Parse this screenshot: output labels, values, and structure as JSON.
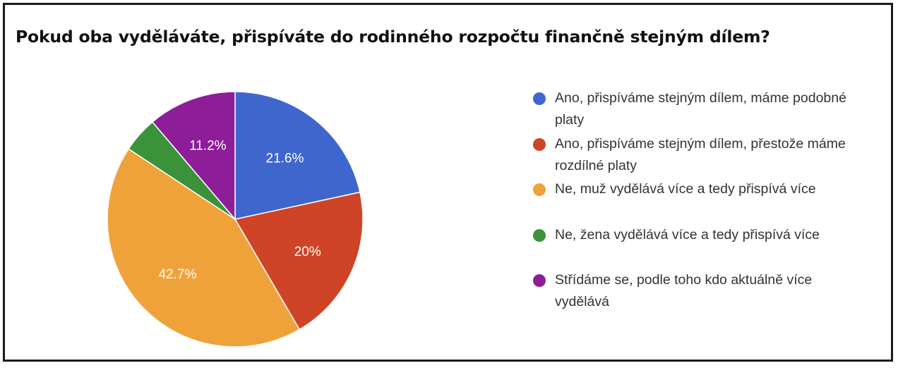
{
  "chart_data": {
    "type": "pie",
    "title": "Pokud oba vyděláváte, přispíváte do rodinného rozpočtu finančně stejným dílem?",
    "slices": [
      {
        "label": "Ano, přispíváme stejným dílem, máme podobné platy",
        "value": 21.6,
        "data_label": "21.6%",
        "color": "#3f66cc"
      },
      {
        "label": "Ano, přispíváme stejným dílem, přestože máme rozdílné platy",
        "value": 20.0,
        "data_label": "20%",
        "color": "#cf4426"
      },
      {
        "label": "Ne, muž vydělává více a tedy přispívá více",
        "value": 42.7,
        "data_label": "42.7%",
        "color": "#f0a23a"
      },
      {
        "label": "Ne, žena vydělává více a tedy přispívá více",
        "value": 4.5,
        "data_label": "",
        "color": "#3a9338"
      },
      {
        "label": "Střídáme se, podle toho kdo aktuálně více vydělává",
        "value": 11.2,
        "data_label": "11.2%",
        "color": "#8e1d99"
      }
    ],
    "legend_position": "right"
  }
}
